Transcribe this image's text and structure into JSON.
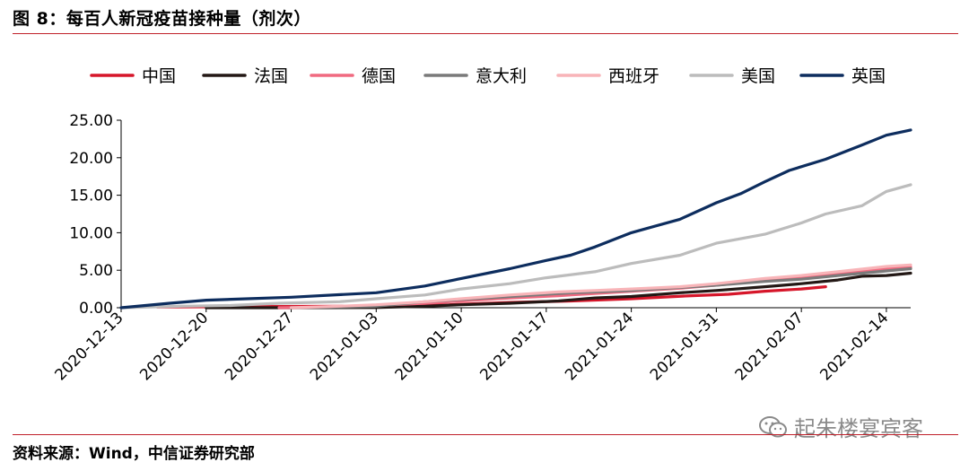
{
  "figure": {
    "title": "图 8：每百人新冠疫苗接种量（剂次）",
    "source": "资料来源：Wind，中信证券研究部",
    "watermark": "起朱楼宴宾客",
    "watermark_icon": "wechat-icon"
  },
  "chart_data": {
    "type": "line",
    "title": "图 8：每百人新冠疫苗接种量（剂次）",
    "xlabel": "",
    "ylabel": "",
    "ylim": [
      0,
      25
    ],
    "yticks": [
      "0.00",
      "5.00",
      "10.00",
      "15.00",
      "20.00",
      "25.00"
    ],
    "xticks": [
      "2020-12-13",
      "2020-12-20",
      "2020-12-27",
      "2021-01-03",
      "2021-01-10",
      "2021-01-17",
      "2021-01-24",
      "2021-01-31",
      "2021-02-07",
      "2021-02-14"
    ],
    "xrange": [
      "2020-12-13",
      "2021-02-16"
    ],
    "grid": false,
    "legend": "top",
    "series": [
      {
        "name": "中国",
        "color": "#d6162a",
        "points": [
          [
            "2020-12-16",
            0.1
          ],
          [
            "2020-12-31",
            0.2
          ],
          [
            "2021-01-05",
            0.3
          ],
          [
            "2021-01-09",
            0.4
          ],
          [
            "2021-01-14",
            0.7
          ],
          [
            "2021-01-19",
            0.9
          ],
          [
            "2021-01-24",
            1.2
          ],
          [
            "2021-01-29",
            1.6
          ],
          [
            "2021-02-01",
            1.8
          ],
          [
            "2021-02-04",
            2.2
          ],
          [
            "2021-02-07",
            2.5
          ],
          [
            "2021-02-09",
            2.8
          ]
        ]
      },
      {
        "name": "法国",
        "color": "#231815",
        "points": [
          [
            "2020-12-20",
            0.0
          ],
          [
            "2020-12-27",
            0.0
          ],
          [
            "2021-01-03",
            0.02
          ],
          [
            "2021-01-07",
            0.2
          ],
          [
            "2021-01-10",
            0.4
          ],
          [
            "2021-01-14",
            0.6
          ],
          [
            "2021-01-18",
            0.9
          ],
          [
            "2021-01-21",
            1.3
          ],
          [
            "2021-01-24",
            1.5
          ],
          [
            "2021-01-28",
            2.0
          ],
          [
            "2021-01-31",
            2.3
          ],
          [
            "2021-02-04",
            2.8
          ],
          [
            "2021-02-07",
            3.2
          ],
          [
            "2021-02-10",
            3.7
          ],
          [
            "2021-02-12",
            4.2
          ],
          [
            "2021-02-14",
            4.3
          ],
          [
            "2021-02-16",
            4.6
          ]
        ]
      },
      {
        "name": "德国",
        "color": "#f06a80",
        "points": [
          [
            "2020-12-26",
            0.0
          ],
          [
            "2020-12-30",
            0.1
          ],
          [
            "2021-01-03",
            0.3
          ],
          [
            "2021-01-07",
            0.6
          ],
          [
            "2021-01-10",
            0.9
          ],
          [
            "2021-01-14",
            1.3
          ],
          [
            "2021-01-18",
            1.6
          ],
          [
            "2021-01-21",
            1.9
          ],
          [
            "2021-01-24",
            2.2
          ],
          [
            "2021-01-28",
            2.6
          ],
          [
            "2021-01-31",
            3.0
          ],
          [
            "2021-02-04",
            3.6
          ],
          [
            "2021-02-07",
            4.0
          ],
          [
            "2021-02-10",
            4.5
          ],
          [
            "2021-02-14",
            5.2
          ],
          [
            "2021-02-16",
            5.4
          ]
        ]
      },
      {
        "name": "意大利",
        "color": "#7a7a7a",
        "points": [
          [
            "2020-12-27",
            0.0
          ],
          [
            "2020-12-31",
            0.1
          ],
          [
            "2021-01-03",
            0.2
          ],
          [
            "2021-01-07",
            0.8
          ],
          [
            "2021-01-10",
            1.1
          ],
          [
            "2021-01-14",
            1.5
          ],
          [
            "2021-01-18",
            1.9
          ],
          [
            "2021-01-21",
            2.1
          ],
          [
            "2021-01-24",
            2.3
          ],
          [
            "2021-01-28",
            2.7
          ],
          [
            "2021-01-31",
            3.0
          ],
          [
            "2021-02-04",
            3.5
          ],
          [
            "2021-02-07",
            3.8
          ],
          [
            "2021-02-10",
            4.3
          ],
          [
            "2021-02-14",
            4.9
          ],
          [
            "2021-02-16",
            5.2
          ]
        ]
      },
      {
        "name": "西班牙",
        "color": "#f8b4b8",
        "points": [
          [
            "2020-12-27",
            0.0
          ],
          [
            "2020-12-31",
            0.2
          ],
          [
            "2021-01-03",
            0.4
          ],
          [
            "2021-01-07",
            0.8
          ],
          [
            "2021-01-10",
            1.2
          ],
          [
            "2021-01-14",
            1.7
          ],
          [
            "2021-01-18",
            2.1
          ],
          [
            "2021-01-21",
            2.3
          ],
          [
            "2021-01-24",
            2.5
          ],
          [
            "2021-01-28",
            2.8
          ],
          [
            "2021-01-31",
            3.2
          ],
          [
            "2021-02-04",
            3.9
          ],
          [
            "2021-02-07",
            4.3
          ],
          [
            "2021-02-10",
            4.8
          ],
          [
            "2021-02-14",
            5.5
          ],
          [
            "2021-02-16",
            5.7
          ]
        ]
      },
      {
        "name": "美国",
        "color": "#bcbcbc",
        "points": [
          [
            "2020-12-13",
            0.0
          ],
          [
            "2020-12-18",
            0.2
          ],
          [
            "2020-12-22",
            0.3
          ],
          [
            "2020-12-26",
            0.6
          ],
          [
            "2020-12-31",
            0.8
          ],
          [
            "2021-01-03",
            1.2
          ],
          [
            "2021-01-07",
            1.7
          ],
          [
            "2021-01-10",
            2.5
          ],
          [
            "2021-01-14",
            3.2
          ],
          [
            "2021-01-17",
            4.0
          ],
          [
            "2021-01-21",
            4.8
          ],
          [
            "2021-01-24",
            5.9
          ],
          [
            "2021-01-28",
            7.0
          ],
          [
            "2021-01-31",
            8.6
          ],
          [
            "2021-02-04",
            9.8
          ],
          [
            "2021-02-07",
            11.3
          ],
          [
            "2021-02-09",
            12.5
          ],
          [
            "2021-02-12",
            13.6
          ],
          [
            "2021-02-14",
            15.5
          ],
          [
            "2021-02-16",
            16.4
          ]
        ]
      },
      {
        "name": "英国",
        "color": "#0d2d5e",
        "points": [
          [
            "2020-12-13",
            0.0
          ],
          [
            "2020-12-17",
            0.6
          ],
          [
            "2020-12-20",
            1.0
          ],
          [
            "2020-12-27",
            1.4
          ],
          [
            "2021-01-03",
            2.0
          ],
          [
            "2021-01-07",
            2.9
          ],
          [
            "2021-01-10",
            3.9
          ],
          [
            "2021-01-14",
            5.2
          ],
          [
            "2021-01-17",
            6.3
          ],
          [
            "2021-01-19",
            7.0
          ],
          [
            "2021-01-21",
            8.1
          ],
          [
            "2021-01-24",
            10.0
          ],
          [
            "2021-01-28",
            11.8
          ],
          [
            "2021-01-31",
            14.0
          ],
          [
            "2021-02-02",
            15.2
          ],
          [
            "2021-02-04",
            16.8
          ],
          [
            "2021-02-06",
            18.3
          ],
          [
            "2021-02-09",
            19.8
          ],
          [
            "2021-02-12",
            21.7
          ],
          [
            "2021-02-14",
            23.0
          ],
          [
            "2021-02-16",
            23.7
          ]
        ]
      }
    ]
  }
}
